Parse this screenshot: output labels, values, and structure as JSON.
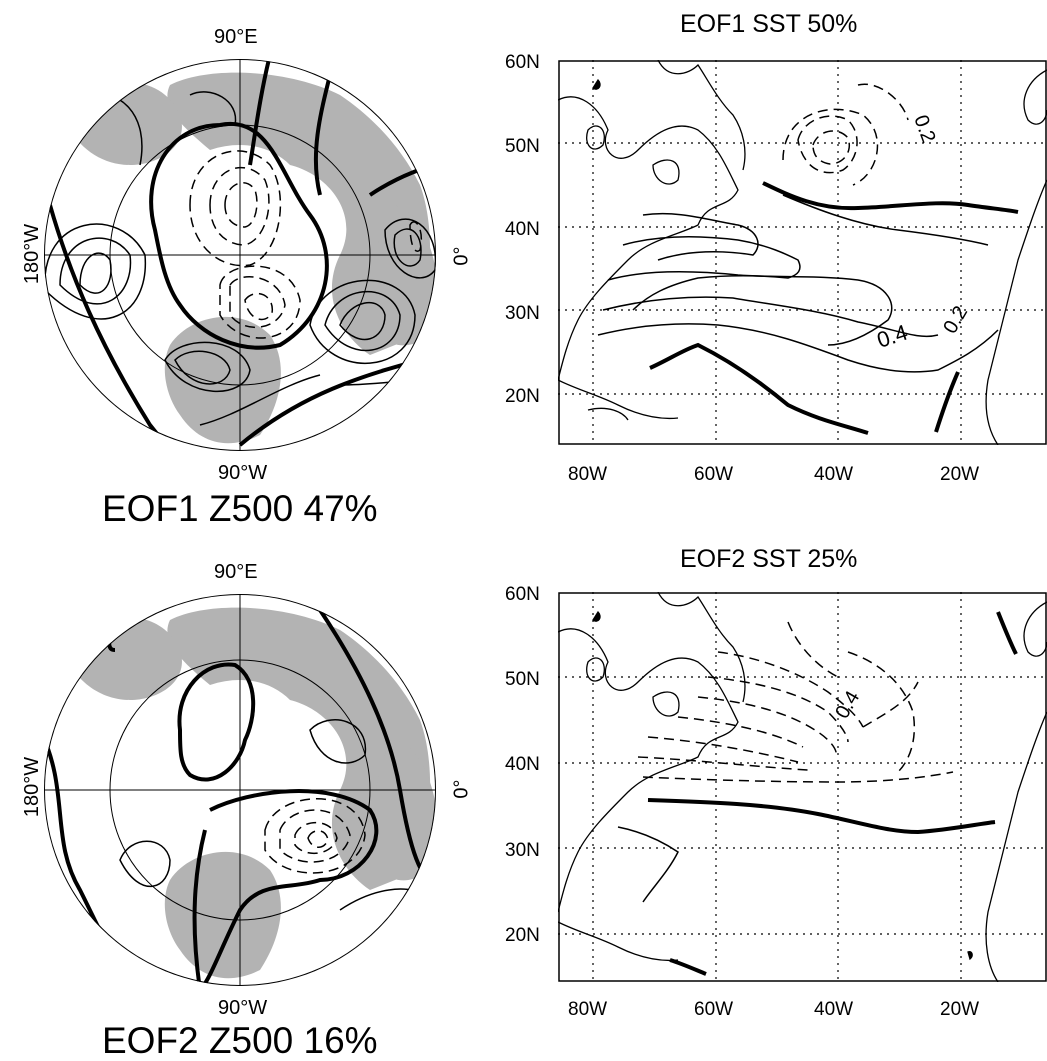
{
  "polar_panels": [
    {
      "caption": "EOF1 Z500 47%",
      "label_top": "90°E",
      "label_bottom": "90°W",
      "label_left": "180°W",
      "label_right": "0°"
    },
    {
      "caption": "EOF2 Z500 16%",
      "label_top": "90°E",
      "label_bottom": "90°W",
      "label_left": "180°W",
      "label_right": "0°"
    }
  ],
  "sst_panels": [
    {
      "title": "EOF1 SST 50%",
      "y_ticks": [
        "60N",
        "50N",
        "40N",
        "30N",
        "20N"
      ],
      "x_ticks": [
        "80W",
        "60W",
        "40W",
        "20W"
      ],
      "contour_labels": [
        "0.2",
        "0.4",
        "0.2"
      ]
    },
    {
      "title": "EOF2 SST 25%",
      "y_ticks": [
        "60N",
        "50N",
        "40N",
        "30N",
        "20N"
      ],
      "x_ticks": [
        "80W",
        "60W",
        "40W",
        "20W"
      ],
      "contour_labels": [
        "0.4"
      ]
    }
  ],
  "colors": {
    "land": "#b3b3b3",
    "ink": "#000000",
    "background": "#ffffff"
  }
}
